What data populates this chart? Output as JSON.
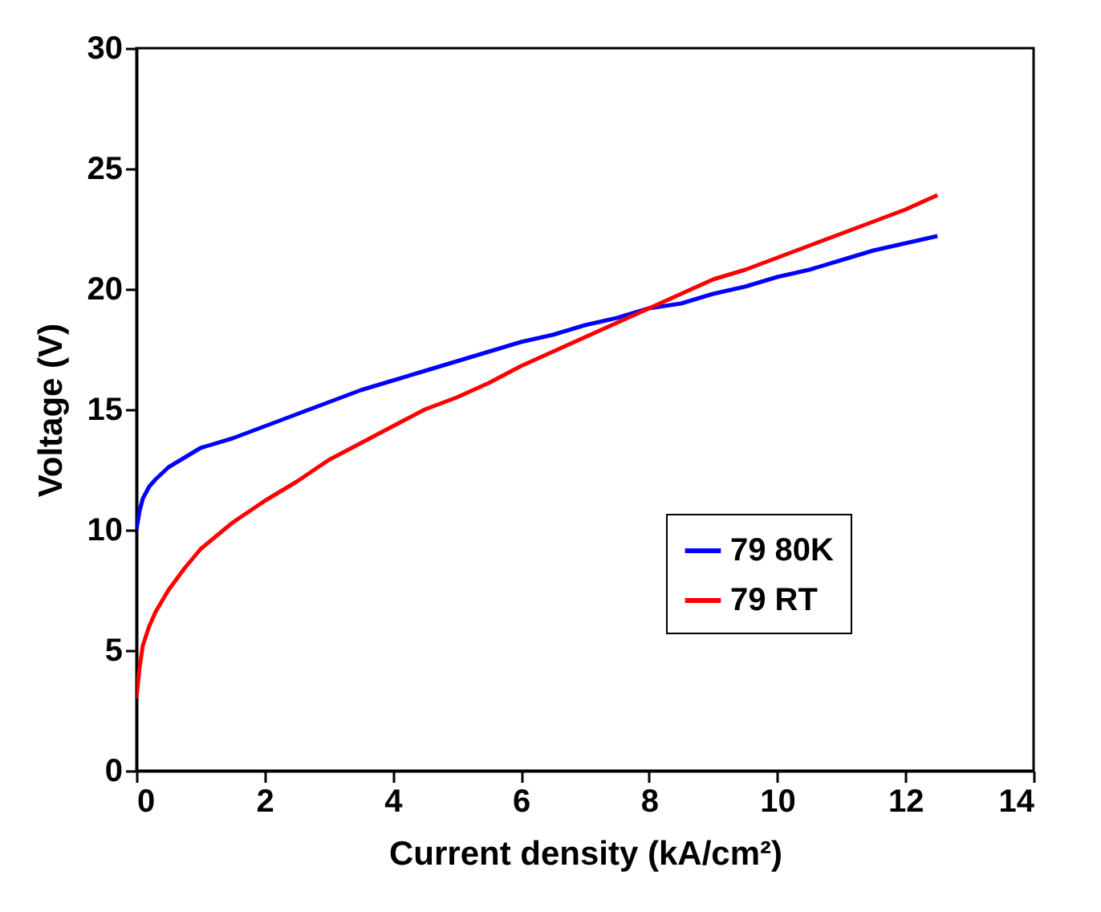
{
  "chart_data": {
    "type": "line",
    "xlabel": "Current density (kA/cm²)",
    "ylabel": "Voltage (V)",
    "xlim": [
      0,
      14
    ],
    "xticks": [
      0,
      2,
      4,
      6,
      8,
      10,
      12,
      14
    ],
    "ylim": [
      0,
      30
    ],
    "yticks": [
      0,
      5,
      10,
      15,
      20,
      25,
      30
    ],
    "grid": false,
    "legend": "right",
    "series": [
      {
        "name": "79 80K",
        "color": "#0000ff",
        "x": [
          0,
          0.05,
          0.1,
          0.2,
          0.3,
          0.5,
          0.75,
          1,
          1.5,
          2,
          2.5,
          3,
          3.5,
          4,
          4.5,
          5,
          5.5,
          6,
          6.5,
          7,
          7.5,
          8,
          8.5,
          9,
          9.5,
          10,
          10.5,
          11,
          11.5,
          12,
          12.5
        ],
        "values": [
          10,
          10.8,
          11.3,
          11.8,
          12.1,
          12.6,
          13.0,
          13.4,
          13.8,
          14.3,
          14.8,
          15.3,
          15.8,
          16.2,
          16.6,
          17.0,
          17.4,
          17.8,
          18.1,
          18.5,
          18.8,
          19.2,
          19.4,
          19.8,
          20.1,
          20.5,
          20.8,
          21.2,
          21.6,
          21.9,
          22.2
        ]
      },
      {
        "name": "79 RT",
        "color": "#ff0000",
        "x": [
          0,
          0.05,
          0.1,
          0.2,
          0.3,
          0.5,
          0.75,
          1,
          1.5,
          2,
          2.5,
          3,
          3.5,
          4,
          4.5,
          5,
          5.5,
          6,
          6.5,
          7,
          7.5,
          8,
          8.5,
          9,
          9.5,
          10,
          10.5,
          11,
          11.5,
          12,
          12.5
        ],
        "values": [
          3,
          4.3,
          5.2,
          6.0,
          6.6,
          7.5,
          8.4,
          9.2,
          10.3,
          11.2,
          12.0,
          12.9,
          13.6,
          14.3,
          15.0,
          15.5,
          16.1,
          16.8,
          17.4,
          18.0,
          18.6,
          19.2,
          19.8,
          20.4,
          20.8,
          21.3,
          21.8,
          22.3,
          22.8,
          23.3,
          23.9
        ]
      }
    ]
  }
}
